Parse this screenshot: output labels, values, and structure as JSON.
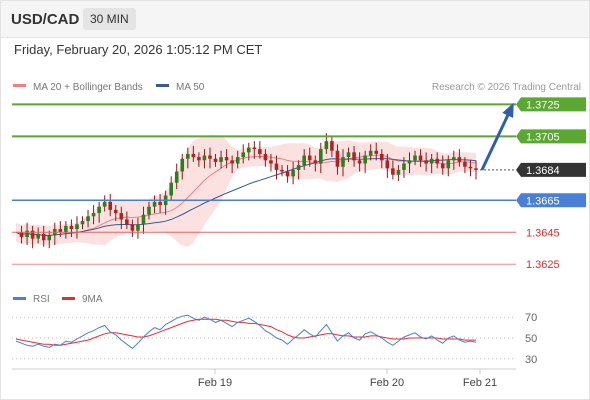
{
  "header": {
    "symbol": "USD/CAD",
    "timeframe": "30 MIN",
    "datetime": "Friday, February 20, 2026 1:05:12 PM CET"
  },
  "chart_data": [
    {
      "type": "candlestick",
      "legend": [
        {
          "label": "MA 20 + Bollinger Bands",
          "color": "#f08080"
        },
        {
          "label": "MA 50",
          "color": "#3a5a94"
        }
      ],
      "copyright": "Research © 2026 Trading Central",
      "ylim": [
        1.3612,
        1.3734
      ],
      "levels": [
        {
          "value": "1.3725",
          "color": "#5aa832",
          "label_bg": "#5aa832",
          "label_color": "#ffffff",
          "kind": "resistance"
        },
        {
          "value": "1.3705",
          "color": "#5aa832",
          "label_bg": "#5aa832",
          "label_color": "#ffffff",
          "kind": "resistance"
        },
        {
          "value": "1.3684",
          "color": "#555555",
          "label_bg": "#333333",
          "label_color": "#ffffff",
          "kind": "last-price"
        },
        {
          "value": "1.3665",
          "color": "#4a7fd6",
          "label_bg": "#4a7fd6",
          "label_color": "#ffffff",
          "kind": "pivot"
        },
        {
          "value": "1.3645",
          "color": "#e06666",
          "label_bg": null,
          "label_color": "#d03030",
          "kind": "support"
        },
        {
          "value": "1.3625",
          "color": "#f08a8a",
          "label_bg": null,
          "label_color": "#d03030",
          "kind": "support"
        }
      ],
      "forecast_arrow": {
        "from": 1.3684,
        "to": 1.3725,
        "color": "#2f5fa8"
      },
      "price_path": [
        1.3645,
        1.3642,
        1.3646,
        1.3641,
        1.3644,
        1.364,
        1.3643,
        1.3647,
        1.3645,
        1.3649,
        1.3647,
        1.365,
        1.3652,
        1.3655,
        1.3657,
        1.3661,
        1.3664,
        1.3659,
        1.3657,
        1.3653,
        1.365,
        1.3646,
        1.365,
        1.3656,
        1.3661,
        1.3664,
        1.3662,
        1.3668,
        1.3676,
        1.3683,
        1.3691,
        1.3694,
        1.3692,
        1.369,
        1.3693,
        1.3691,
        1.3689,
        1.3692,
        1.369,
        1.3688,
        1.3692,
        1.3695,
        1.3698,
        1.3697,
        1.3694,
        1.369,
        1.3688,
        1.3684,
        1.3683,
        1.368,
        1.3684,
        1.3687,
        1.3693,
        1.369,
        1.3688,
        1.3697,
        1.3702,
        1.3696,
        1.3686,
        1.3692,
        1.3695,
        1.369,
        1.3688,
        1.3693,
        1.3696,
        1.3694,
        1.369,
        1.3685,
        1.3681,
        1.3684,
        1.3688,
        1.369,
        1.3693,
        1.369,
        1.3688,
        1.3691,
        1.3688,
        1.3685,
        1.369,
        1.3692,
        1.3689,
        1.3686,
        1.3685,
        1.3684
      ],
      "x_ticks": [
        "Feb 19",
        "Feb 20",
        "Feb 21"
      ]
    },
    {
      "type": "line",
      "legend": [
        {
          "label": "RSI",
          "color": "#4a7fd6"
        },
        {
          "label": "9MA",
          "color": "#e03030"
        }
      ],
      "ylim": [
        25,
        75
      ],
      "y_ticks": [
        "70",
        "50",
        "30"
      ],
      "rsi": [
        47,
        45,
        43,
        42,
        44,
        42,
        41,
        44,
        43,
        47,
        46,
        49,
        52,
        55,
        57,
        60,
        62,
        56,
        53,
        48,
        44,
        40,
        45,
        51,
        56,
        60,
        58,
        63,
        66,
        69,
        71,
        72,
        69,
        67,
        70,
        68,
        65,
        67,
        64,
        61,
        65,
        67,
        69,
        66,
        62,
        57,
        54,
        50,
        48,
        44,
        49,
        53,
        58,
        54,
        51,
        57,
        63,
        55,
        47,
        52,
        55,
        50,
        48,
        54,
        56,
        53,
        50,
        46,
        43,
        47,
        51,
        53,
        55,
        51,
        49,
        52,
        48,
        45,
        50,
        52,
        48,
        46,
        47,
        46
      ],
      "ma9": [
        49,
        48,
        47,
        46,
        45,
        44,
        44,
        43,
        43,
        44,
        45,
        46,
        47,
        48,
        50,
        52,
        54,
        55,
        55,
        54,
        53,
        52,
        51,
        51,
        52,
        54,
        56,
        58,
        60,
        62,
        64,
        66,
        67,
        68,
        68,
        68,
        68,
        67,
        67,
        66,
        65,
        65,
        64,
        64,
        63,
        62,
        61,
        58,
        56,
        53,
        51,
        50,
        50,
        51,
        52,
        53,
        54,
        54,
        53,
        52,
        52,
        51,
        51,
        51,
        52,
        52,
        51,
        50,
        49,
        49,
        49,
        50,
        50,
        50,
        50,
        50,
        50,
        49,
        49,
        49,
        49,
        48,
        48,
        48
      ]
    }
  ]
}
